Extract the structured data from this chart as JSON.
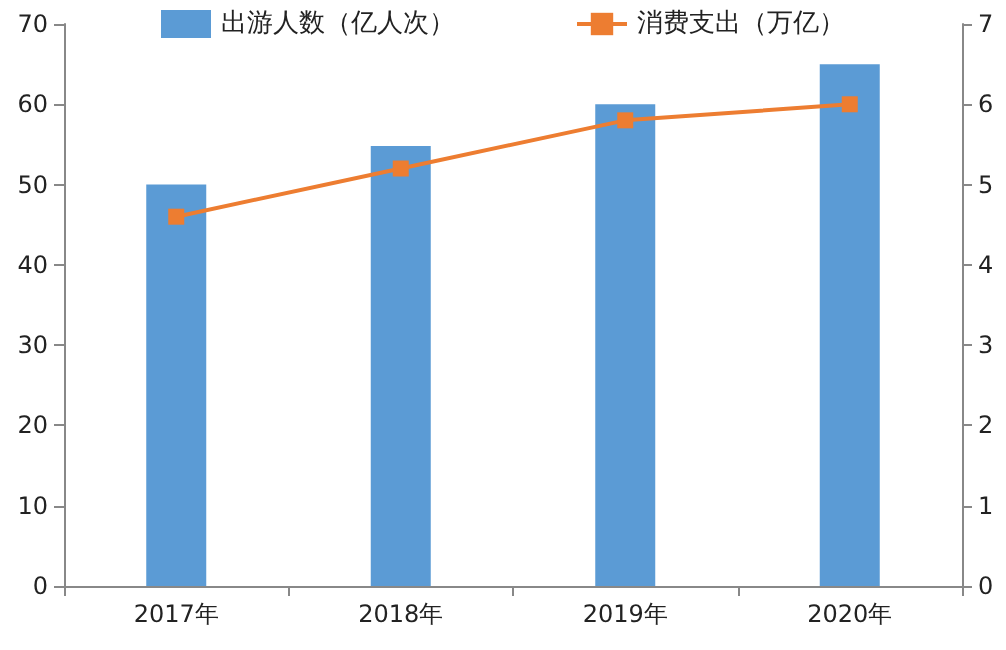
{
  "chart_data": {
    "type": "bar",
    "categories": [
      "2017年",
      "2018年",
      "2019年",
      "2020年"
    ],
    "series": [
      {
        "name": "出游人数（亿人次）",
        "color": "#5b9bd5",
        "values": [
          50,
          54.8,
          60,
          65
        ]
      },
      {
        "name": "消费支出（万亿）",
        "type": "line",
        "axis": "y2",
        "color": "#ed7d31",
        "marker": "square",
        "values": [
          4.6,
          5.2,
          5.8,
          6.0
        ]
      }
    ],
    "ylim": [
      0,
      70
    ],
    "yticks": [
      0,
      10,
      20,
      30,
      40,
      50,
      60,
      70
    ],
    "y2lim": [
      0,
      7
    ],
    "y2ticks": [
      0,
      1,
      2,
      3,
      4,
      5,
      6,
      7
    ],
    "grid": false,
    "legend": "top"
  }
}
